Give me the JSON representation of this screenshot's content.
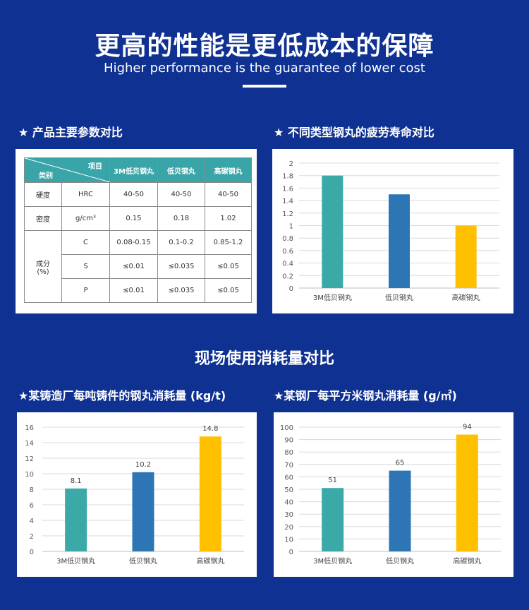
{
  "header": {
    "title": "更高的性能是更低成本的保障",
    "subtitle": "Higher performance is the guarantee of lower cost"
  },
  "sections": {
    "params_title": "★ 产品主要参数对比",
    "fatigue_title": "★ 不同类型钢丸的疲劳寿命对比",
    "consumption_title": "现场使用消耗量对比",
    "foundry_title": "★某铸造厂每吨铸件的钢丸消耗量 (kg/t)",
    "steel_title": "★某钢厂每平方米钢丸消耗量 (g/㎡)"
  },
  "table": {
    "header_item": "项目",
    "header_category": "类别",
    "columns": [
      "3M低贝钢丸",
      "低贝钢丸",
      "高碳钢丸"
    ],
    "rows": [
      {
        "group": "硬度",
        "item": "HRC",
        "values": [
          "40-50",
          "40-50",
          "40-50"
        ]
      },
      {
        "group": "密度",
        "item": "g/cm³",
        "values": [
          "0.15",
          "0.18",
          "1.02"
        ]
      },
      {
        "group": "成分\n(%)",
        "item": "C",
        "values": [
          "0.08-0.15",
          "0.1-0.2",
          "0.85-1.2"
        ]
      },
      {
        "group": "",
        "item": "S",
        "values": [
          "≤0.01",
          "≤0.035",
          "≤0.05"
        ]
      },
      {
        "group": "",
        "item": "P",
        "values": [
          "≤0.01",
          "≤0.035",
          "≤0.05"
        ]
      }
    ]
  },
  "chart_data": [
    {
      "id": "fatigue",
      "type": "bar",
      "categories": [
        "3M低贝钢丸",
        "低贝钢丸",
        "高碳钢丸"
      ],
      "values": [
        1.8,
        1.5,
        1.0
      ],
      "colors": [
        "#3aa9a8",
        "#2e75b6",
        "#ffc000"
      ],
      "ylim": [
        0,
        2
      ],
      "yticks": [
        "0",
        "0.2",
        "0.4",
        "0.6",
        "0.8",
        "1",
        "1.2",
        "1.4",
        "1.6",
        "1.8",
        "2"
      ],
      "data_labels": false,
      "grid": true
    },
    {
      "id": "foundry",
      "type": "bar",
      "categories": [
        "3M低贝钢丸",
        "低贝钢丸",
        "高碳钢丸"
      ],
      "values": [
        8.1,
        10.2,
        14.8
      ],
      "colors": [
        "#3aa9a8",
        "#2e75b6",
        "#ffc000"
      ],
      "ylim": [
        0,
        16
      ],
      "yticks": [
        "0",
        "2",
        "4",
        "6",
        "8",
        "10",
        "12",
        "14",
        "16"
      ],
      "data_labels": true,
      "grid": true
    },
    {
      "id": "steel",
      "type": "bar",
      "categories": [
        "3M低贝钢丸",
        "低贝钢丸",
        "高碳钢丸"
      ],
      "values": [
        51,
        65,
        94
      ],
      "colors": [
        "#3aa9a8",
        "#2e75b6",
        "#ffc000"
      ],
      "ylim": [
        0,
        100
      ],
      "yticks": [
        "0",
        "10",
        "20",
        "30",
        "40",
        "50",
        "60",
        "70",
        "80",
        "90",
        "100"
      ],
      "data_labels": true,
      "grid": true
    }
  ]
}
